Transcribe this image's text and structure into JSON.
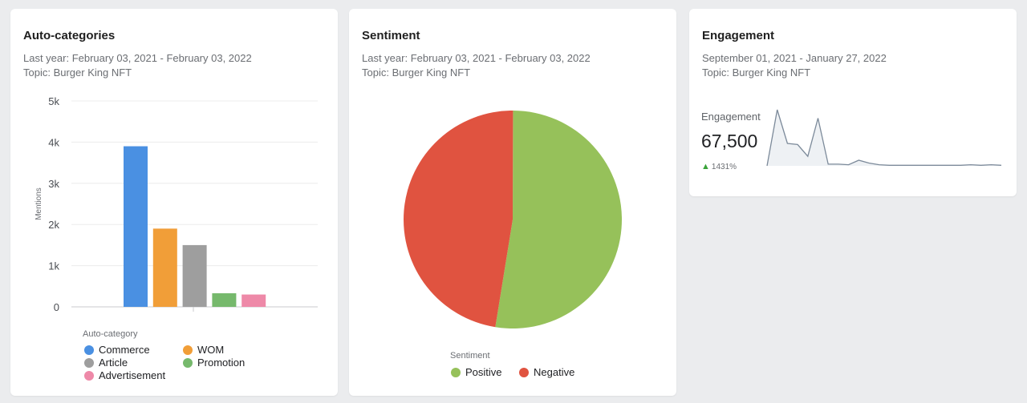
{
  "autocat": {
    "title": "Auto-categories",
    "date_range": "Last year: February 03, 2021 - February 03, 2022",
    "topic": "Topic: Burger King NFT",
    "legend_title": "Auto-category",
    "chart_data": {
      "type": "bar",
      "title": "Auto-categories",
      "ylabel": "Mentions",
      "xlabel": "",
      "ylim": [
        0,
        5000
      ],
      "yticks": [
        "0",
        "1k",
        "2k",
        "3k",
        "4k",
        "5k"
      ],
      "categories": [
        "Commerce",
        "WOM",
        "Article",
        "Promotion",
        "Advertisement"
      ],
      "values": [
        3900,
        1900,
        1500,
        330,
        300
      ],
      "colors": [
        "#4a90e2",
        "#f19e38",
        "#9e9e9e",
        "#76b96c",
        "#ee89a8"
      ]
    }
  },
  "sentiment": {
    "title": "Sentiment",
    "date_range": "Last year: February 03, 2021 - February 03, 2022",
    "topic": "Topic: Burger King NFT",
    "legend_title": "Sentiment",
    "chart_data": {
      "type": "pie",
      "title": "Sentiment",
      "categories": [
        "Positive",
        "Negative"
      ],
      "values": [
        52.5,
        47.5
      ],
      "colors": [
        "#96c15a",
        "#e05340"
      ]
    }
  },
  "engagement": {
    "title": "Engagement",
    "date_range": "September 01, 2021 - January 27, 2022",
    "topic": "Topic: Burger King NFT",
    "metric_label": "Engagement",
    "metric_value": "67,500",
    "delta": "1431%",
    "chart_data": {
      "type": "area",
      "title": "Engagement",
      "values": [
        0,
        100,
        40,
        38,
        17,
        85,
        3,
        3,
        2,
        10,
        5,
        2,
        1,
        1,
        1,
        1,
        1,
        1,
        1,
        1,
        2,
        1,
        2,
        1
      ]
    }
  }
}
